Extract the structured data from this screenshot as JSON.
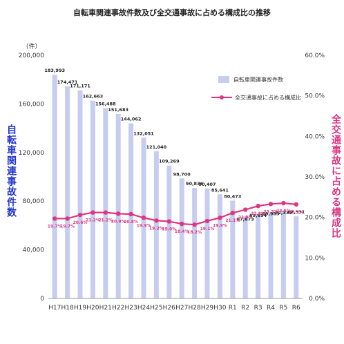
{
  "chart_data": {
    "type": "bar+line",
    "title": "自転車関連事故件数及び全交通事故に占める構成比の推移",
    "unit_left": "（件）",
    "ylabel_left": "自転車関連事故件数",
    "ylabel_right": "全交通事故に占める構成比",
    "categories": [
      "H17",
      "H18",
      "H19",
      "H20",
      "H21",
      "H22",
      "H23",
      "H24",
      "H25",
      "H26",
      "H27",
      "H28",
      "H29",
      "H30",
      "R1",
      "R2",
      "R3",
      "R4",
      "R5",
      "R6"
    ],
    "series": [
      {
        "name": "自転車関連事故件数",
        "type": "bar",
        "axis": "left",
        "color": "#c7cdf0",
        "values": [
          183993,
          174471,
          171171,
          162663,
          156488,
          151683,
          144062,
          132051,
          121040,
          109269,
          98700,
          90836,
          90407,
          85641,
          80473,
          67673,
          69694,
          69985,
          72339,
          67531
        ],
        "labels": [
          "183,993",
          "174,471",
          "171,171",
          "162,663",
          "156,488",
          "151,683",
          "144,062",
          "132,051",
          "121,040",
          "109,269",
          "98,700",
          "90,836",
          "90,407",
          "85,641",
          "80,473",
          "67,673",
          "69,694",
          "69,985",
          "72,339",
          "67,531"
        ]
      },
      {
        "name": "全交通事故に占める構成比",
        "type": "line",
        "axis": "right",
        "color": "#e0357f",
        "values": [
          19.7,
          19.7,
          20.6,
          21.2,
          21.2,
          20.9,
          20.8,
          19.9,
          19.2,
          19.0,
          18.4,
          18.2,
          19.1,
          19.9,
          21.1,
          21.9,
          22.8,
          23.3,
          23.5,
          23.2
        ],
        "labels": [
          "19.7%",
          "19.7%",
          "20.6%",
          "21.2%",
          "21.2%",
          "20.9%",
          "20.8%",
          "19.9%",
          "19.2%",
          "19.0%",
          "18.4%",
          "18.2%",
          "19.1%",
          "19.9%",
          "21.1%",
          "21.9%",
          "22.8%",
          "23.3%",
          "23.5%",
          "23.2%"
        ]
      }
    ],
    "y_left": {
      "min": 0,
      "max": 200000,
      "ticks": [
        "0",
        "40,000",
        "80,000",
        "120,000",
        "160,000",
        "200,000"
      ]
    },
    "y_right": {
      "min": 0,
      "max": 60,
      "ticks": [
        "0.0%",
        "10.0%",
        "20.0%",
        "30.0%",
        "40.0%",
        "50.0%",
        "60.0%"
      ]
    },
    "grid": false,
    "legend": "top-right"
  }
}
